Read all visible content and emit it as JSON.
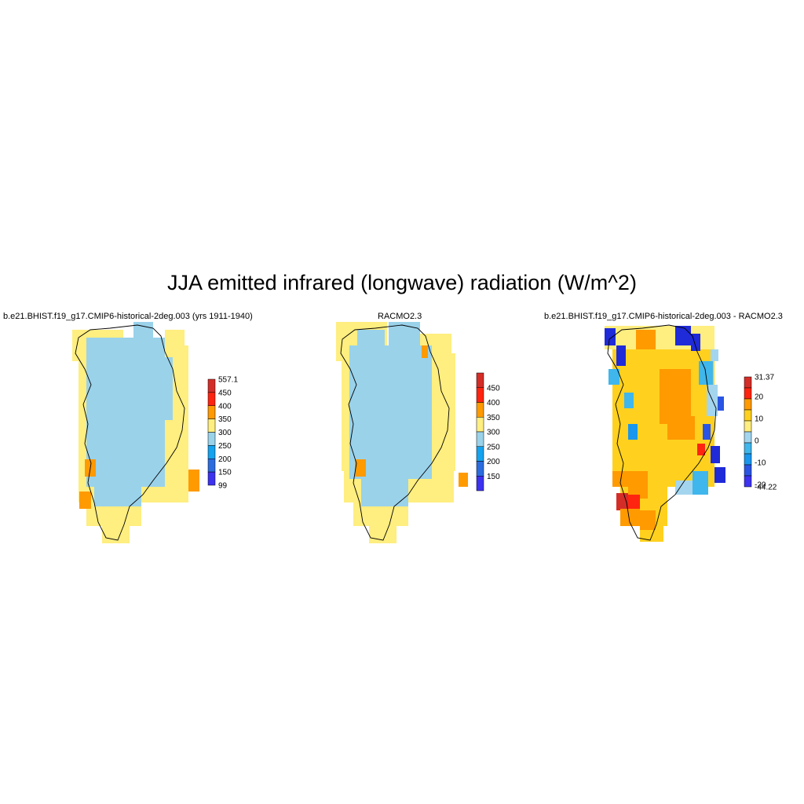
{
  "figure": {
    "title": "JJA emitted infrared (longwave) radiation (W/m^2)",
    "panels": [
      {
        "id": "model",
        "title": "b.e21.BHIST.f19_g17.CMIP6-historical-2deg.003 (yrs 1911-1940)",
        "colorbar": {
          "labels": [
            "557.1",
            "450",
            "400",
            "350",
            "300",
            "250",
            "200",
            "150",
            "99"
          ],
          "colors": [
            "#d42d28",
            "#ff2410",
            "#ff9a00",
            "#ffee80",
            "#9ad2ea",
            "#15a2ee",
            "#2c6cdf",
            "#3c32ef"
          ]
        },
        "fill_colors": {
          "interior": "#9ad2ea",
          "margin": "#ffee80",
          "hot": "#ff9a00"
        }
      },
      {
        "id": "obs",
        "title": "RACMO2.3",
        "colorbar": {
          "labels": [
            "450",
            "400",
            "350",
            "300",
            "250",
            "200",
            "150"
          ],
          "colors": [
            "#d42d28",
            "#ff2410",
            "#ff9a00",
            "#ffee80",
            "#9ad2ea",
            "#15a2ee",
            "#2c6cdf",
            "#3c32ef"
          ]
        },
        "fill_colors": {
          "interior": "#9ad2ea",
          "margin": "#ffee80",
          "hot": "#ff9a00"
        }
      },
      {
        "id": "diff",
        "title": "b.e21.BHIST.f19_g17.CMIP6-historical-2deg.003 - RACMO2.3",
        "colorbar": {
          "labels": [
            "31.37",
            "20",
            "10",
            "0",
            "-10",
            "-20",
            "-44.22"
          ],
          "colors": [
            "#d42d28",
            "#ff2410",
            "#ff9a00",
            "#ffd11e",
            "#ffee80",
            "#a3d5ef",
            "#3fb6ec",
            "#1996ed",
            "#2a55e4",
            "#3c32ef"
          ]
        },
        "fill_colors": {
          "interior": "#ffd11e",
          "core": "#ff9a00",
          "blue": "#1f2ad8",
          "lightblue": "#3fb6ec",
          "red": "#d42d28"
        }
      }
    ]
  }
}
